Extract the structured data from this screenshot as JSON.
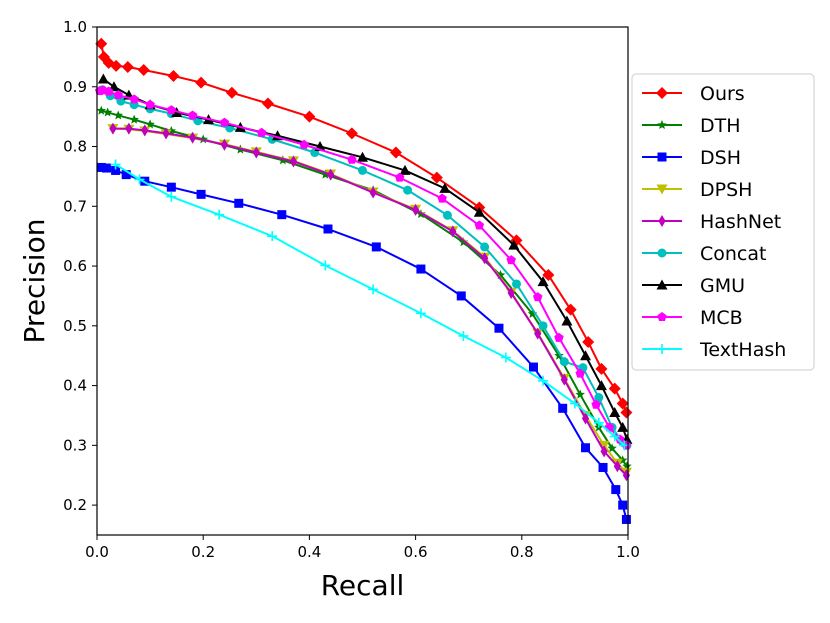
{
  "chart_data": {
    "type": "line",
    "title": "",
    "xlabel": "Recall",
    "ylabel": "Precision",
    "xlim": [
      0.0,
      1.0
    ],
    "ylim": [
      0.15,
      1.0
    ],
    "xticks": [
      0.0,
      0.2,
      0.4,
      0.6,
      0.8,
      1.0
    ],
    "xtick_labels": [
      "0.0",
      "0.2",
      "0.4",
      "0.6",
      "0.8",
      "1.0"
    ],
    "yticks": [
      0.2,
      0.3,
      0.4,
      0.5,
      0.6,
      0.7,
      0.8,
      0.9,
      1.0
    ],
    "ytick_labels": [
      "0.2",
      "0.3",
      "0.4",
      "0.5",
      "0.6",
      "0.7",
      "0.8",
      "0.9",
      "1.0"
    ],
    "grid": false,
    "legend_position": "outside-right",
    "series": [
      {
        "name": "Ours",
        "color": "#ff0000",
        "marker": "diamond",
        "x": [
          0.008,
          0.013,
          0.022,
          0.036,
          0.058,
          0.088,
          0.144,
          0.196,
          0.254,
          0.322,
          0.4,
          0.48,
          0.563,
          0.64,
          0.72,
          0.79,
          0.85,
          0.892,
          0.925,
          0.95,
          0.975,
          0.99,
          0.997
        ],
        "y": [
          0.972,
          0.95,
          0.94,
          0.935,
          0.933,
          0.928,
          0.918,
          0.907,
          0.89,
          0.872,
          0.85,
          0.822,
          0.79,
          0.748,
          0.698,
          0.643,
          0.585,
          0.527,
          0.473,
          0.428,
          0.395,
          0.37,
          0.355
        ]
      },
      {
        "name": "DTH",
        "color": "#007f00",
        "marker": "star",
        "x": [
          0.008,
          0.02,
          0.04,
          0.07,
          0.1,
          0.14,
          0.2,
          0.27,
          0.35,
          0.43,
          0.52,
          0.61,
          0.69,
          0.76,
          0.82,
          0.87,
          0.91,
          0.945,
          0.97,
          0.99,
          0.998
        ],
        "y": [
          0.86,
          0.857,
          0.852,
          0.845,
          0.837,
          0.826,
          0.812,
          0.795,
          0.777,
          0.753,
          0.727,
          0.687,
          0.64,
          0.585,
          0.52,
          0.45,
          0.385,
          0.33,
          0.295,
          0.275,
          0.265
        ]
      },
      {
        "name": "DSH",
        "color": "#0000ff",
        "marker": "square",
        "x": [
          0.008,
          0.018,
          0.035,
          0.055,
          0.09,
          0.14,
          0.196,
          0.267,
          0.348,
          0.435,
          0.526,
          0.61,
          0.686,
          0.757,
          0.822,
          0.877,
          0.92,
          0.953,
          0.977,
          0.99,
          0.997
        ],
        "y": [
          0.765,
          0.764,
          0.76,
          0.753,
          0.742,
          0.732,
          0.72,
          0.705,
          0.686,
          0.662,
          0.632,
          0.595,
          0.55,
          0.496,
          0.431,
          0.362,
          0.296,
          0.263,
          0.226,
          0.2,
          0.176
        ]
      },
      {
        "name": "DPSH",
        "color": "#bfbf00",
        "marker": "triangle-down",
        "x": [
          0.03,
          0.06,
          0.09,
          0.13,
          0.18,
          0.24,
          0.3,
          0.37,
          0.44,
          0.52,
          0.6,
          0.67,
          0.73,
          0.78,
          0.83,
          0.88,
          0.92,
          0.955,
          0.98,
          0.997
        ],
        "y": [
          0.83,
          0.829,
          0.826,
          0.821,
          0.814,
          0.804,
          0.791,
          0.776,
          0.754,
          0.724,
          0.695,
          0.659,
          0.615,
          0.556,
          0.488,
          0.412,
          0.35,
          0.3,
          0.27,
          0.255
        ]
      },
      {
        "name": "HashNet",
        "color": "#bf00bf",
        "marker": "thin-diamond",
        "x": [
          0.03,
          0.06,
          0.09,
          0.13,
          0.18,
          0.24,
          0.3,
          0.37,
          0.44,
          0.52,
          0.6,
          0.67,
          0.73,
          0.78,
          0.83,
          0.88,
          0.92,
          0.955,
          0.98,
          0.997
        ],
        "y": [
          0.83,
          0.83,
          0.827,
          0.822,
          0.815,
          0.803,
          0.79,
          0.775,
          0.753,
          0.723,
          0.694,
          0.658,
          0.613,
          0.555,
          0.487,
          0.41,
          0.345,
          0.29,
          0.265,
          0.25
        ]
      },
      {
        "name": "Concat",
        "color": "#00bfbf",
        "marker": "circle",
        "x": [
          0.01,
          0.025,
          0.045,
          0.07,
          0.1,
          0.14,
          0.19,
          0.25,
          0.33,
          0.41,
          0.5,
          0.585,
          0.66,
          0.73,
          0.79,
          0.84,
          0.88,
          0.915,
          0.945,
          0.97,
          0.99,
          0.998
        ],
        "y": [
          0.895,
          0.885,
          0.876,
          0.87,
          0.863,
          0.855,
          0.843,
          0.831,
          0.812,
          0.79,
          0.76,
          0.727,
          0.685,
          0.632,
          0.57,
          0.5,
          0.44,
          0.43,
          0.38,
          0.33,
          0.305,
          0.3
        ]
      },
      {
        "name": "GMU",
        "color": "#000000",
        "marker": "triangle-up",
        "x": [
          0.012,
          0.032,
          0.06,
          0.1,
          0.15,
          0.21,
          0.27,
          0.34,
          0.42,
          0.5,
          0.58,
          0.655,
          0.72,
          0.785,
          0.84,
          0.885,
          0.92,
          0.95,
          0.975,
          0.99,
          0.998
        ],
        "y": [
          0.913,
          0.9,
          0.886,
          0.87,
          0.857,
          0.845,
          0.832,
          0.818,
          0.8,
          0.782,
          0.76,
          0.73,
          0.69,
          0.635,
          0.574,
          0.508,
          0.45,
          0.4,
          0.355,
          0.33,
          0.31
        ]
      },
      {
        "name": "MCB",
        "color": "#ff00ff",
        "marker": "pentagon",
        "x": [
          0.005,
          0.012,
          0.022,
          0.04,
          0.07,
          0.1,
          0.14,
          0.18,
          0.24,
          0.31,
          0.39,
          0.48,
          0.57,
          0.65,
          0.72,
          0.78,
          0.83,
          0.87,
          0.91,
          0.94,
          0.965,
          0.985,
          0.997
        ],
        "y": [
          0.893,
          0.894,
          0.892,
          0.886,
          0.879,
          0.87,
          0.861,
          0.852,
          0.84,
          0.823,
          0.803,
          0.778,
          0.748,
          0.713,
          0.668,
          0.61,
          0.548,
          0.48,
          0.42,
          0.368,
          0.33,
          0.31,
          0.3
        ]
      },
      {
        "name": "TextHash",
        "color": "#00ffff",
        "marker": "plus",
        "x": [
          0.035,
          0.08,
          0.14,
          0.23,
          0.33,
          0.43,
          0.52,
          0.61,
          0.69,
          0.77,
          0.84,
          0.9,
          0.945,
          0.975,
          0.993
        ],
        "y": [
          0.77,
          0.745,
          0.716,
          0.686,
          0.65,
          0.601,
          0.561,
          0.521,
          0.483,
          0.447,
          0.408,
          0.37,
          0.338,
          0.315,
          0.3
        ]
      }
    ]
  }
}
